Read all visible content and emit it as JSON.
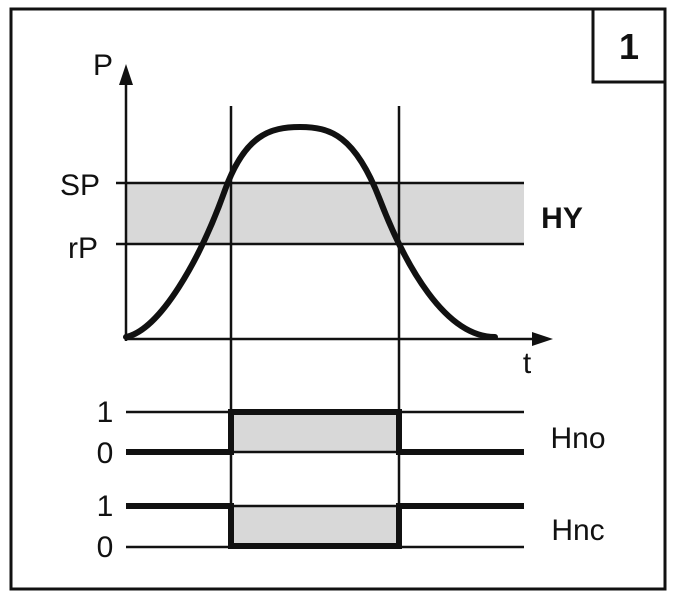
{
  "figure": {
    "number": "1",
    "colors": {
      "line": "#111111",
      "band": "#d8d8d8",
      "background": "#ffffff"
    }
  },
  "top_plot": {
    "y_axis_label": "P",
    "x_axis_label": "t",
    "setpoint_label": "SP",
    "resetpoint_label": "rP",
    "hysteresis_label": "HY"
  },
  "outputs": [
    {
      "name": "Hno",
      "high_label": "1",
      "low_label": "0",
      "active_when_between_crossings": "high"
    },
    {
      "name": "Hnc",
      "high_label": "1",
      "low_label": "0",
      "active_when_between_crossings": "low"
    }
  ]
}
